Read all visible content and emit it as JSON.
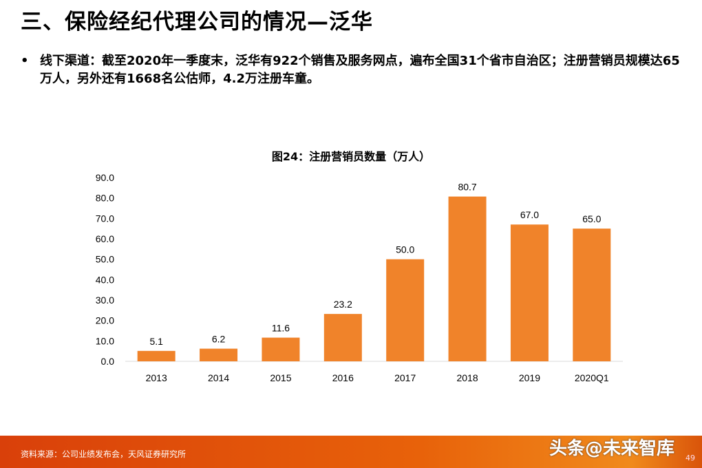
{
  "title": "三、保险经纪代理公司的情况—泛华",
  "bullet": "线下渠道：截至2020年一季度末，泛华有922个销售及服务网点，遍布全国31个省市自治区；注册营销员规模达65万人，另外还有1668名公估师，4.2万注册车童。",
  "footer": {
    "source": "资料来源：公司业绩发布会，天风证券研究所",
    "watermark": "头条@未来智库",
    "page": "49"
  },
  "chart_data": {
    "type": "bar",
    "title": "图24：注册营销员数量（万人）",
    "categories": [
      "2013",
      "2014",
      "2015",
      "2016",
      "2017",
      "2018",
      "2019",
      "2020Q1"
    ],
    "values": [
      5.1,
      6.2,
      11.6,
      23.2,
      50.0,
      80.7,
      67.0,
      65.0
    ],
    "ylim": [
      0,
      90
    ],
    "yticks": [
      "0.0",
      "10.0",
      "20.0",
      "30.0",
      "40.0",
      "50.0",
      "60.0",
      "70.0",
      "80.0",
      "90.0"
    ],
    "color": "#F0832A",
    "grid": false,
    "data_labels": true
  }
}
